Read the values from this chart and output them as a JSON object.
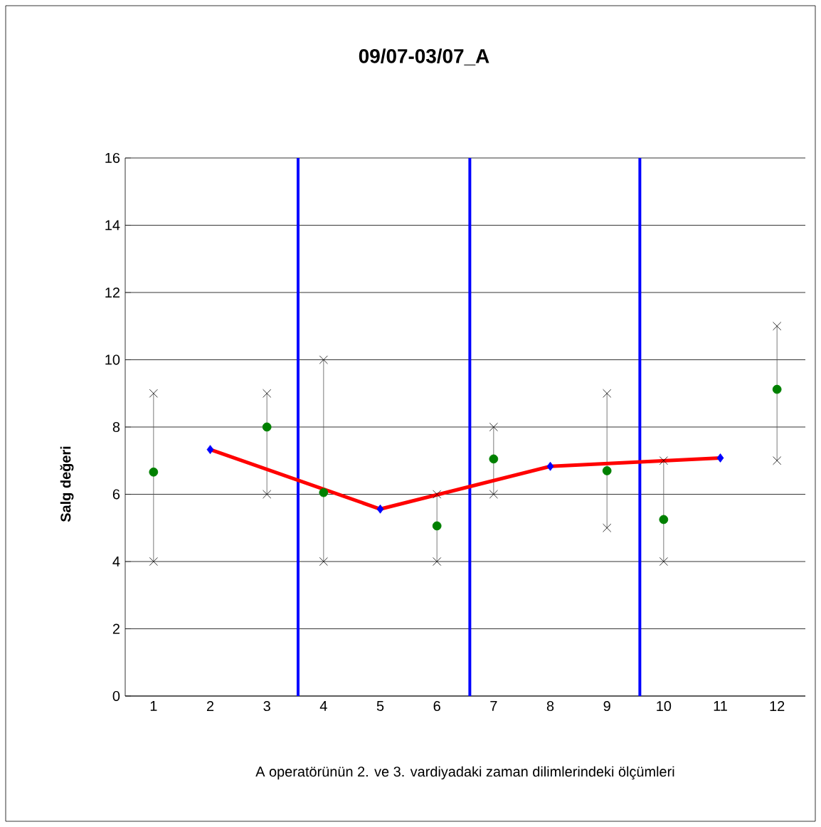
{
  "chart_data": {
    "type": "scatter",
    "title": "09/07-03/07_A",
    "xlabel": "A operatörünün 2. ve 3. vardiyadaki zaman dilimlerindeki ölçümleri",
    "ylabel": "Salg değeri",
    "x": [
      1,
      3,
      4,
      6,
      7,
      9,
      10,
      12
    ],
    "xlim": [
      0.5,
      12.5
    ],
    "xticks": [
      1,
      2,
      3,
      4,
      5,
      6,
      7,
      8,
      9,
      10,
      11,
      12
    ],
    "ylim": [
      0,
      16
    ],
    "yticks": [
      0,
      2,
      4,
      6,
      8,
      10,
      12,
      14,
      16
    ],
    "grid": "y",
    "series": [
      {
        "color": "#000000",
        "marker": "cross",
        "values": [
          9,
          9,
          10,
          6,
          8,
          9,
          7,
          11
        ]
      },
      {
        "color": "#000000",
        "marker": "cross",
        "values": [
          4,
          6,
          4,
          4,
          6,
          5,
          4,
          7
        ]
      },
      {
        "color": "#008000",
        "marker": "circle",
        "values": [
          6.66,
          8.0,
          6.05,
          5.06,
          7.05,
          6.7,
          5.25,
          9.12
        ],
        "errors": [
          [
            4,
            9
          ],
          [
            6,
            9
          ],
          [
            4,
            10
          ],
          [
            4,
            6
          ],
          [
            6,
            8
          ],
          [
            5,
            9
          ],
          [
            4,
            7
          ],
          [
            7,
            11
          ]
        ]
      },
      {
        "type": "line",
        "x": [
          2,
          5,
          8,
          11
        ],
        "color": "#ff0000",
        "marker": "none",
        "values": [
          7.33,
          5.56,
          6.83,
          7.08
        ]
      },
      {
        "type": "scatter",
        "x": [
          2,
          5,
          8,
          11
        ],
        "color": "#0000ff",
        "marker": "diamond",
        "values": [
          7.33,
          5.56,
          6.83,
          7.08
        ]
      }
    ],
    "ref_lines": [
      {
        "axis": "x",
        "value": 3.55,
        "color": "#0000ff"
      },
      {
        "axis": "x",
        "value": 6.58,
        "color": "#0000ff"
      },
      {
        "axis": "x",
        "value": 9.58,
        "color": "#0000ff"
      }
    ]
  }
}
